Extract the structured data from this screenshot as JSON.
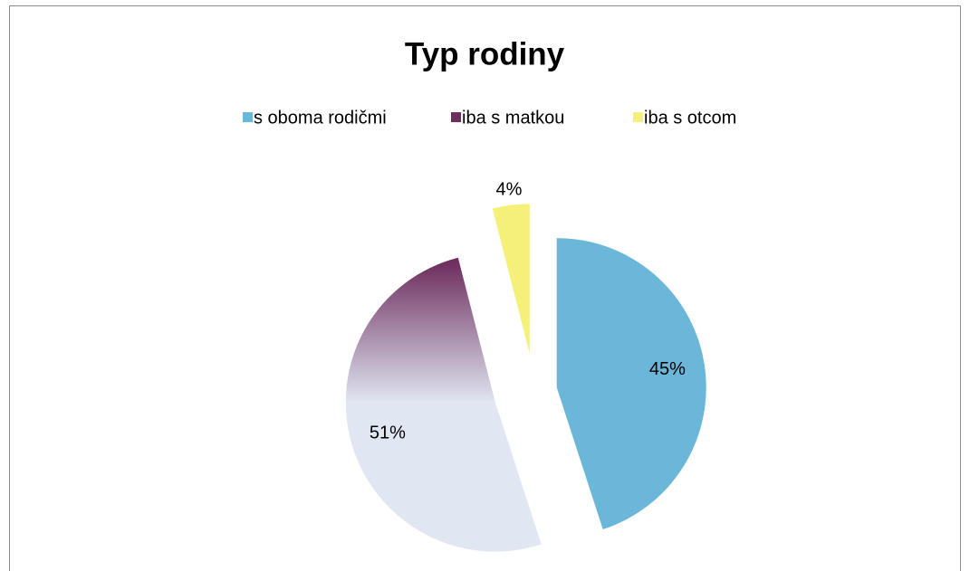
{
  "chart_data": {
    "type": "pie",
    "title": "Typ rodiny",
    "categories": [
      "s oboma rodičmi",
      "iba s matkou",
      "iba s otcom"
    ],
    "values": [
      45,
      51,
      4
    ],
    "value_labels": [
      "45%",
      "51%",
      "4%"
    ],
    "colors": [
      "#6bb7d9",
      "#6e2e5e",
      "#f4f07a"
    ],
    "legend": "top"
  }
}
